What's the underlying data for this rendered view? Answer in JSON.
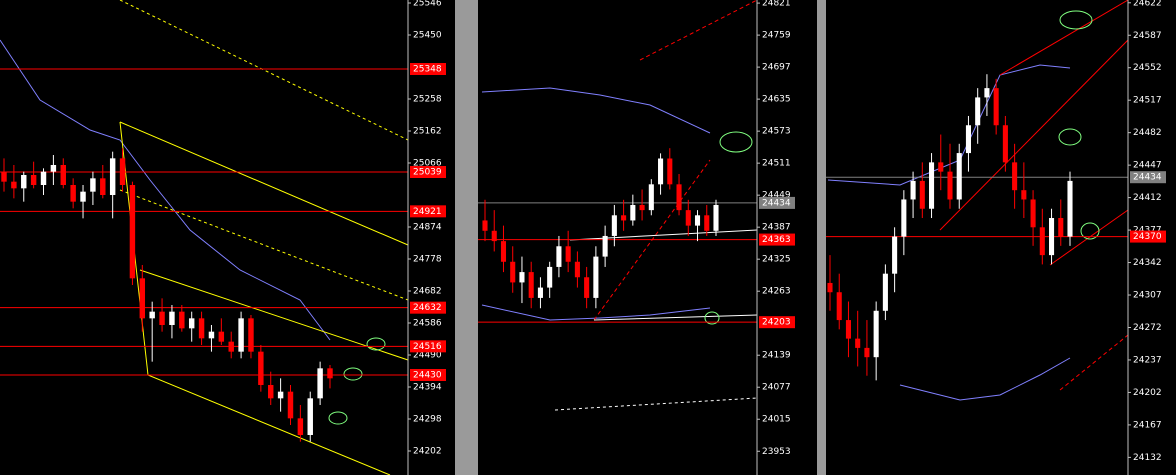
{
  "chart_data": [
    {
      "type": "candlestick",
      "ylim": [
        24130,
        25555
      ],
      "up_color": "#ffffff",
      "down_color": "#ff0000",
      "yticks": [
        25546,
        25450,
        25258,
        25162,
        25066,
        24874,
        24778,
        24682,
        24586,
        24490,
        24394,
        24298,
        24202
      ],
      "markers": [
        {
          "value": 25348,
          "color": "#ff0000"
        },
        {
          "value": 25039,
          "color": "#ff0000"
        },
        {
          "value": 24921,
          "color": "#ff0000"
        },
        {
          "value": 24632,
          "color": "#ff0000"
        },
        {
          "value": 24516,
          "color": "#ff0000"
        },
        {
          "value": 24430,
          "color": "#ff0000"
        }
      ],
      "candles": [
        [
          25040,
          25080,
          24980,
          25010
        ],
        [
          25010,
          25060,
          24960,
          24990
        ],
        [
          24990,
          25040,
          24950,
          25030
        ],
        [
          25030,
          25070,
          24990,
          25000
        ],
        [
          25000,
          25050,
          24970,
          25040
        ],
        [
          25040,
          25090,
          25000,
          25060
        ],
        [
          25060,
          25080,
          24990,
          25000
        ],
        [
          25000,
          25020,
          24930,
          24950
        ],
        [
          24950,
          25000,
          24900,
          24980
        ],
        [
          24980,
          25040,
          24940,
          25020
        ],
        [
          25020,
          25060,
          24960,
          24970
        ],
        [
          24970,
          25100,
          24900,
          25080
        ],
        [
          25080,
          25110,
          24980,
          25000
        ],
        [
          25000,
          25010,
          24700,
          24720
        ],
        [
          24720,
          24760,
          24560,
          24600
        ],
        [
          24600,
          24650,
          24470,
          24620
        ],
        [
          24620,
          24660,
          24560,
          24580
        ],
        [
          24580,
          24640,
          24540,
          24620
        ],
        [
          24620,
          24640,
          24560,
          24570
        ],
        [
          24570,
          24620,
          24530,
          24600
        ],
        [
          24600,
          24620,
          24520,
          24540
        ],
        [
          24540,
          24580,
          24500,
          24560
        ],
        [
          24560,
          24600,
          24520,
          24530
        ],
        [
          24530,
          24560,
          24480,
          24500
        ],
        [
          24500,
          24620,
          24480,
          24600
        ],
        [
          24600,
          24610,
          24480,
          24500
        ],
        [
          24500,
          24520,
          24380,
          24400
        ],
        [
          24400,
          24440,
          24340,
          24360
        ],
        [
          24360,
          24420,
          24320,
          24380
        ],
        [
          24380,
          24400,
          24280,
          24300
        ],
        [
          24300,
          24340,
          24230,
          24250
        ],
        [
          24250,
          24380,
          24230,
          24360
        ],
        [
          24360,
          24470,
          24340,
          24450
        ],
        [
          24450,
          24460,
          24390,
          24420
        ]
      ]
    },
    {
      "type": "candlestick",
      "ylim": [
        23907,
        24827
      ],
      "up_color": "#ffffff",
      "down_color": "#ff0000",
      "yticks": [
        24821,
        24759,
        24697,
        24635,
        24573,
        24511,
        24449,
        24387,
        24325,
        24263,
        24139,
        24077,
        24015,
        23953
      ],
      "markers": [
        {
          "value": 24434,
          "color": "#808080"
        },
        {
          "value": 24363,
          "color": "#ff0000"
        },
        {
          "value": 24203,
          "color": "#ff0000"
        }
      ],
      "candles": [
        [
          24400,
          24440,
          24360,
          24380
        ],
        [
          24380,
          24420,
          24340,
          24360
        ],
        [
          24360,
          24390,
          24300,
          24320
        ],
        [
          24320,
          24350,
          24260,
          24280
        ],
        [
          24280,
          24330,
          24240,
          24300
        ],
        [
          24300,
          24320,
          24230,
          24250
        ],
        [
          24250,
          24290,
          24230,
          24270
        ],
        [
          24270,
          24320,
          24250,
          24310
        ],
        [
          24310,
          24370,
          24290,
          24350
        ],
        [
          24350,
          24380,
          24300,
          24320
        ],
        [
          24320,
          24340,
          24270,
          24290
        ],
        [
          24290,
          24310,
          24230,
          24250
        ],
        [
          24250,
          24350,
          24230,
          24330
        ],
        [
          24330,
          24390,
          24310,
          24370
        ],
        [
          24370,
          24430,
          24350,
          24410
        ],
        [
          24410,
          24440,
          24380,
          24400
        ],
        [
          24400,
          24450,
          24390,
          24430
        ],
        [
          24430,
          24460,
          24400,
          24420
        ],
        [
          24420,
          24480,
          24410,
          24470
        ],
        [
          24470,
          24530,
          24450,
          24520
        ],
        [
          24520,
          24540,
          24460,
          24470
        ],
        [
          24470,
          24490,
          24410,
          24420
        ],
        [
          24420,
          24440,
          24370,
          24390
        ],
        [
          24390,
          24420,
          24360,
          24410
        ],
        [
          24410,
          24430,
          24370,
          24380
        ],
        [
          24380,
          24440,
          24370,
          24430
        ]
      ]
    },
    {
      "type": "candlestick",
      "ylim": [
        24113,
        24625
      ],
      "up_color": "#ffffff",
      "down_color": "#ff0000",
      "yticks": [
        24622,
        24587,
        24552,
        24517,
        24482,
        24447,
        24412,
        24377,
        24342,
        24307,
        24272,
        24237,
        24202,
        24167,
        24132
      ],
      "markers": [
        {
          "value": 24434,
          "color": "#808080"
        },
        {
          "value": 24370,
          "color": "#ff0000"
        }
      ],
      "candles": [
        [
          24320,
          24350,
          24290,
          24310
        ],
        [
          24310,
          24330,
          24270,
          24280
        ],
        [
          24280,
          24300,
          24240,
          24260
        ],
        [
          24260,
          24290,
          24230,
          24250
        ],
        [
          24250,
          24280,
          24220,
          24240
        ],
        [
          24240,
          24300,
          24215,
          24290
        ],
        [
          24290,
          24340,
          24280,
          24330
        ],
        [
          24330,
          24380,
          24310,
          24370
        ],
        [
          24370,
          24420,
          24350,
          24410
        ],
        [
          24410,
          24440,
          24390,
          24430
        ],
        [
          24430,
          24450,
          24390,
          24400
        ],
        [
          24400,
          24460,
          24390,
          24450
        ],
        [
          24450,
          24480,
          24420,
          24440
        ],
        [
          24440,
          24470,
          24400,
          24410
        ],
        [
          24410,
          24470,
          24400,
          24460
        ],
        [
          24460,
          24500,
          24440,
          24490
        ],
        [
          24490,
          24530,
          24470,
          24520
        ],
        [
          24520,
          24545,
          24500,
          24530
        ],
        [
          24530,
          24540,
          24480,
          24490
        ],
        [
          24490,
          24500,
          24440,
          24450
        ],
        [
          24450,
          24470,
          24400,
          24420
        ],
        [
          24420,
          24450,
          24390,
          24410
        ],
        [
          24410,
          24420,
          24360,
          24380
        ],
        [
          24380,
          24400,
          24340,
          24350
        ],
        [
          24350,
          24400,
          24340,
          24390
        ],
        [
          24390,
          24410,
          24360,
          24370
        ],
        [
          24370,
          24440,
          24360,
          24430
        ]
      ]
    }
  ]
}
